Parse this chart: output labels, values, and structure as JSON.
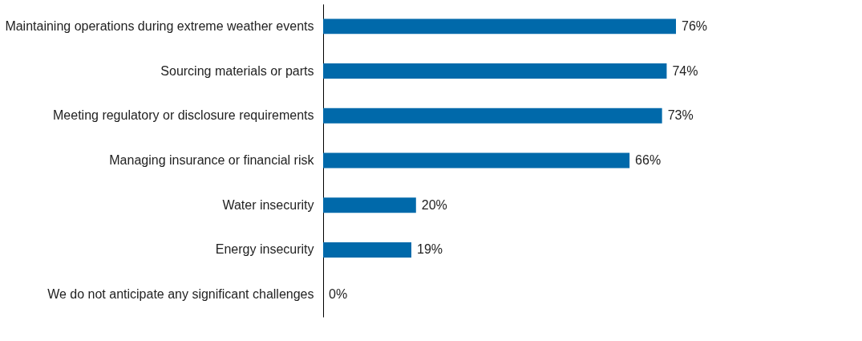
{
  "chart_data": {
    "type": "bar",
    "orientation": "horizontal",
    "categories": [
      "Maintaining operations during extreme weather events",
      "Sourcing materials or parts",
      "Meeting regulatory or disclosure requirements",
      "Managing insurance or financial risk",
      "Water insecurity",
      "Energy insecurity",
      "We do not anticipate any significant challenges"
    ],
    "values": [
      76,
      74,
      73,
      66,
      20,
      19,
      0
    ],
    "value_labels": [
      "76%",
      "74%",
      "73%",
      "66%",
      "20%",
      "19%",
      "0%"
    ],
    "color": "#0069aa",
    "grid": false
  }
}
